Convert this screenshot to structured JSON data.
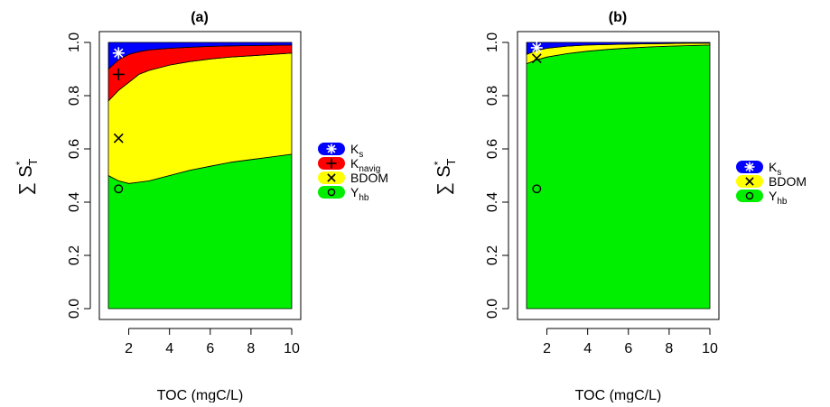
{
  "chart_data": [
    {
      "type": "area",
      "title": "(a)",
      "xlabel": "TOC (mgC/L)",
      "ylabel": "∑S*T",
      "xlim": [
        1,
        10
      ],
      "ylim": [
        0,
        1
      ],
      "x_ticks": [
        "2",
        "4",
        "6",
        "8",
        "10"
      ],
      "y_ticks": [
        "0.0",
        "0.2",
        "0.4",
        "0.6",
        "0.8",
        "1.0"
      ],
      "x": [
        1,
        1.5,
        2,
        2.5,
        3,
        4,
        5,
        6,
        7,
        8,
        9,
        10
      ],
      "series": [
        {
          "name": "Yhb",
          "color": "#00EE00",
          "cumulative": [
            0.5,
            0.48,
            0.47,
            0.475,
            0.48,
            0.5,
            0.52,
            0.535,
            0.55,
            0.56,
            0.57,
            0.58
          ]
        },
        {
          "name": "BDOM",
          "color": "#FFFF00",
          "cumulative": [
            0.78,
            0.82,
            0.85,
            0.88,
            0.895,
            0.915,
            0.928,
            0.938,
            0.945,
            0.95,
            0.955,
            0.96
          ]
        },
        {
          "name": "Knavig",
          "color": "#FF0000",
          "cumulative": [
            0.9,
            0.935,
            0.955,
            0.965,
            0.972,
            0.978,
            0.982,
            0.985,
            0.987,
            0.988,
            0.989,
            0.99
          ]
        },
        {
          "name": "Ks",
          "color": "#0000FF",
          "cumulative": [
            1,
            1,
            1,
            1,
            1,
            1,
            1,
            1,
            1,
            1,
            1,
            1
          ]
        }
      ],
      "markers": [
        {
          "series": "Ks",
          "symbol": "asterisk",
          "x": 1.5,
          "y": 0.96
        },
        {
          "series": "Knavig",
          "symbol": "plus",
          "x": 1.5,
          "y": 0.88
        },
        {
          "series": "BDOM",
          "symbol": "cross",
          "x": 1.5,
          "y": 0.64
        },
        {
          "series": "Yhb",
          "symbol": "circle",
          "x": 1.5,
          "y": 0.45
        }
      ],
      "legend": [
        {
          "main": "K",
          "sub": "s",
          "color": "#0000FF",
          "symbol": "asterisk"
        },
        {
          "main": "K",
          "sub": "navig",
          "color": "#FF0000",
          "symbol": "plus"
        },
        {
          "main": "BDOM",
          "sub": "",
          "color": "#FFFF00",
          "symbol": "cross"
        },
        {
          "main": "Y",
          "sub": "hb",
          "color": "#00EE00",
          "symbol": "circle"
        }
      ],
      "legend_placement": "right",
      "grid": false
    },
    {
      "type": "area",
      "title": "(b)",
      "xlabel": "TOC (mgC/L)",
      "ylabel": "∑S*T",
      "xlim": [
        1,
        10
      ],
      "ylim": [
        0,
        1
      ],
      "x_ticks": [
        "2",
        "4",
        "6",
        "8",
        "10"
      ],
      "y_ticks": [
        "0.0",
        "0.2",
        "0.4",
        "0.6",
        "0.8",
        "1.0"
      ],
      "x": [
        1,
        1.5,
        2,
        3,
        4,
        5,
        6,
        7,
        8,
        9,
        10
      ],
      "series": [
        {
          "name": "Yhb",
          "color": "#00EE00",
          "cumulative": [
            0.92,
            0.935,
            0.945,
            0.958,
            0.967,
            0.974,
            0.979,
            0.983,
            0.986,
            0.988,
            0.99
          ]
        },
        {
          "name": "BDOM",
          "color": "#FFFF00",
          "cumulative": [
            0.955,
            0.97,
            0.978,
            0.986,
            0.99,
            0.992,
            0.994,
            0.995,
            0.996,
            0.997,
            0.997
          ]
        },
        {
          "name": "Ks",
          "color": "#0000FF",
          "cumulative": [
            1,
            1,
            1,
            1,
            1,
            1,
            1,
            1,
            1,
            1,
            1
          ]
        }
      ],
      "markers": [
        {
          "series": "Ks",
          "symbol": "asterisk",
          "x": 1.5,
          "y": 0.98
        },
        {
          "series": "BDOM",
          "symbol": "cross",
          "x": 1.5,
          "y": 0.94
        },
        {
          "series": "Yhb",
          "symbol": "circle",
          "x": 1.5,
          "y": 0.45
        }
      ],
      "legend": [
        {
          "main": "K",
          "sub": "s",
          "color": "#0000FF",
          "symbol": "asterisk"
        },
        {
          "main": "BDOM",
          "sub": "",
          "color": "#FFFF00",
          "symbol": "cross"
        },
        {
          "main": "Y",
          "sub": "hb",
          "color": "#00EE00",
          "symbol": "circle"
        }
      ],
      "legend_placement": "right",
      "grid": false
    }
  ]
}
